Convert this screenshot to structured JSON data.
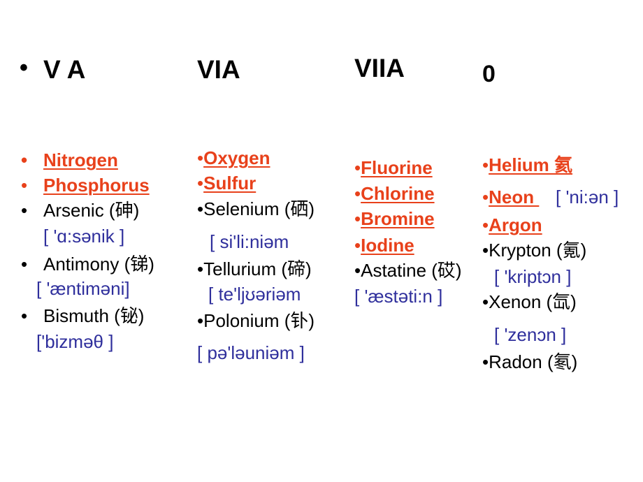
{
  "columns": [
    {
      "header": "V A",
      "lines": [
        "Nitrogen",
        "Phosphorus",
        "Arsenic (砷)",
        "[ 'ɑ:sənik ]",
        "Antimony (锑)",
        "[ 'æntiməni]",
        "Bismuth (铋)",
        "['bizməθ ]"
      ]
    },
    {
      "header": "VIA",
      "lines": [
        "Oxygen",
        "Sulfur",
        "Selenium (硒)",
        "[ si'li:niəm",
        "Tellurium (碲)",
        "[ te'ljʊəriəm",
        "Polonium (钋)",
        "[ pə'ləuniəm ]"
      ]
    },
    {
      "header": "VIIA",
      "lines": [
        "Fluorine",
        "Chlorine",
        "Bromine",
        "Iodine",
        "Astatine (砹)",
        "[ 'æstəti:n ]"
      ]
    },
    {
      "header": "0",
      "lines": [
        "Helium 氦",
        "Neon ",
        "[ 'ni:ən ]",
        "Argon",
        "Krypton (氪)",
        "[ 'kriptɔn ]",
        "Xenon (氙)",
        "[ 'zenɔn ]",
        "Radon (氡)"
      ]
    }
  ]
}
